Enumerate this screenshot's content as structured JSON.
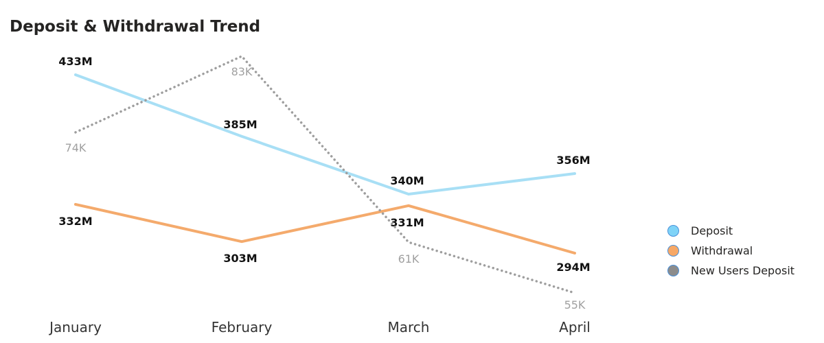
{
  "chart_data": {
    "type": "line",
    "title": "Deposit & Withdrawal Trend",
    "categories": [
      "January",
      "February",
      "March",
      "April"
    ],
    "series": [
      {
        "name": "Deposit",
        "axis": "amount",
        "color": "#a8dff5",
        "style": "solid",
        "values": [
          433,
          385,
          340,
          356
        ],
        "labels": [
          "433M",
          "385M",
          "340M",
          "356M"
        ]
      },
      {
        "name": "Withdrawal",
        "axis": "amount",
        "color": "#f4aa6c",
        "style": "solid",
        "values": [
          332,
          303,
          331,
          294
        ],
        "labels": [
          "332M",
          "303M",
          "331M",
          "294M"
        ]
      },
      {
        "name": "New Users Deposit",
        "axis": "users",
        "color": "#9e9e9e",
        "style": "dotted",
        "values": [
          74,
          83,
          61,
          55
        ],
        "labels": [
          "74K",
          "83K",
          "61K",
          "55K"
        ]
      }
    ],
    "legend_position": "right",
    "gridlines": false
  },
  "legend_colors": {
    "Deposit": "#7fd3f7",
    "Withdrawal": "#f7a866",
    "New Users Deposit": "#8c8c8c"
  }
}
